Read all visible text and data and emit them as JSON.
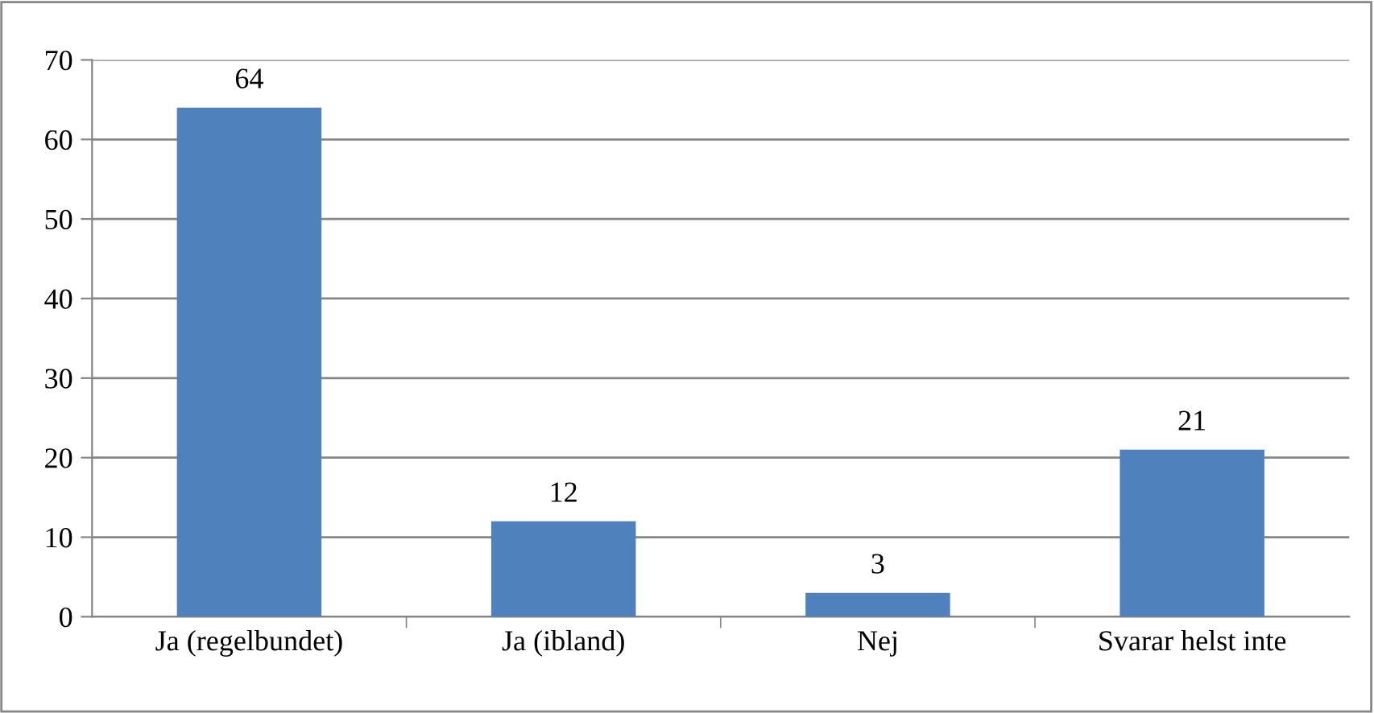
{
  "chart_data": {
    "type": "bar",
    "categories": [
      "Ja (regelbundet)",
      "Ja (ibland)",
      "Nej",
      "Svarar helst inte"
    ],
    "values": [
      64,
      12,
      3,
      21
    ],
    "color": "#4f81bd",
    "ylim": [
      0,
      70
    ],
    "yticks": [
      0,
      10,
      20,
      30,
      40,
      50,
      60,
      70
    ],
    "grid": "y",
    "data_labels": true,
    "legend": false
  }
}
